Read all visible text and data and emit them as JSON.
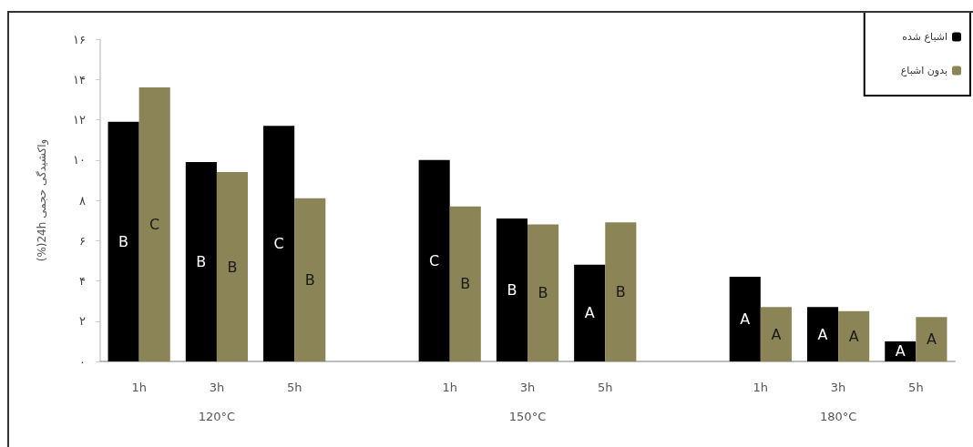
{
  "chart_data": {
    "type": "bar",
    "categories": [
      "1h",
      "3h",
      "5h",
      null,
      "1h",
      "3h",
      "5h",
      null,
      "1h",
      "3h",
      "5h"
    ],
    "series": [
      {
        "name": "اشباع شده",
        "color": "#000000",
        "values": [
          11.9,
          9.9,
          11.7,
          null,
          10.0,
          7.1,
          4.8,
          null,
          4.2,
          2.7,
          1.0
        ],
        "value_labels": [
          "B",
          "B",
          "C",
          null,
          "C",
          "B",
          "A",
          null,
          "A",
          "A",
          "A"
        ]
      },
      {
        "name": "بدون اشباع",
        "color": "#8b8456",
        "values": [
          13.6,
          9.4,
          8.1,
          null,
          7.7,
          6.8,
          6.9,
          null,
          2.7,
          2.5,
          2.2
        ],
        "value_labels": [
          "C",
          "B",
          "B",
          null,
          "B",
          "B",
          "B",
          null,
          "A",
          "A",
          "A"
        ]
      }
    ],
    "ylabel": "(%)24h واکشیدگی حجمی",
    "ylim": [
      0,
      16
    ],
    "yticks": [
      {
        "value": 0,
        "label": "۰"
      },
      {
        "value": 2,
        "label": "۲"
      },
      {
        "value": 4,
        "label": "۴"
      },
      {
        "value": 6,
        "label": "۶"
      },
      {
        "value": 8,
        "label": "۸"
      },
      {
        "value": 10,
        "label": "۱۰"
      },
      {
        "value": 12,
        "label": "۱۲"
      },
      {
        "value": 14,
        "label": "۱۴"
      },
      {
        "value": 16,
        "label": "۱۶"
      }
    ],
    "annotations": [
      "120°C",
      "150°C",
      "180°C"
    ],
    "legend": "top right",
    "grid": false
  }
}
